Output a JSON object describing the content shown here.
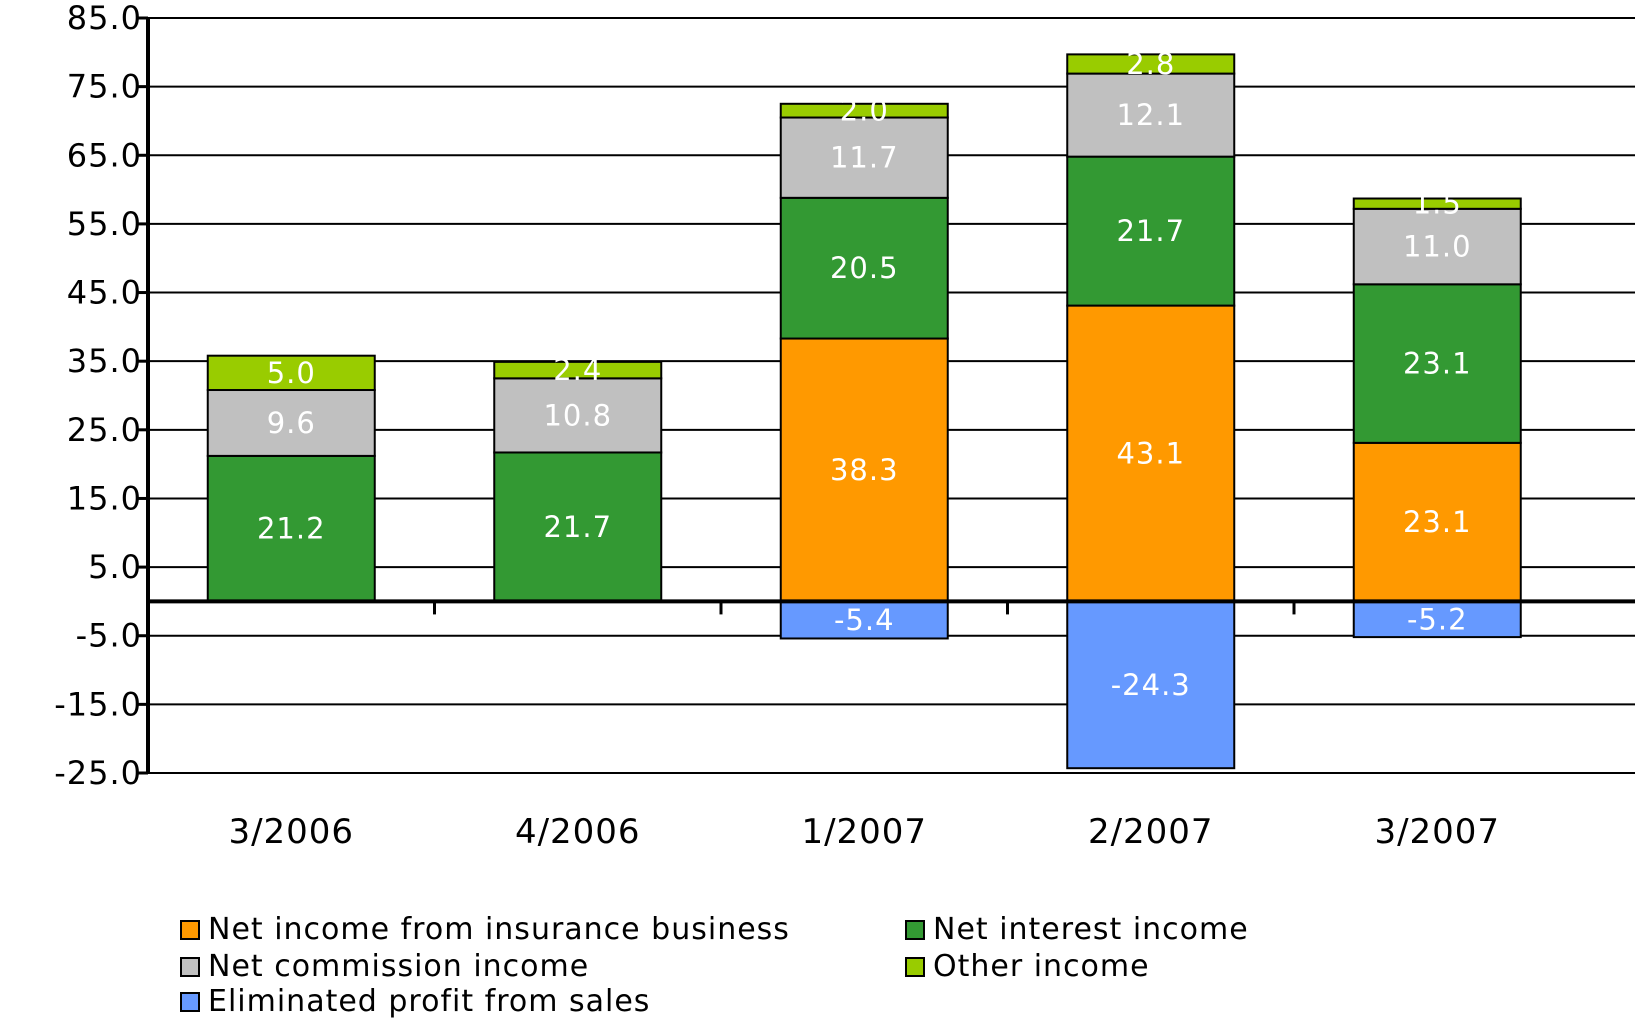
{
  "chart_data": {
    "type": "bar",
    "stacked": true,
    "categories": [
      "3/2006",
      "4/2006",
      "1/2007",
      "2/2007",
      "3/2007"
    ],
    "ylim": [
      -25,
      85
    ],
    "yticks": [
      "85.0",
      "75.0",
      "65.0",
      "55.0",
      "45.0",
      "35.0",
      "25.0",
      "15.0",
      "5.0",
      "-5.0",
      "-15.0",
      "-25.0"
    ],
    "ytick_values": [
      85,
      75,
      65,
      55,
      45,
      35,
      25,
      15,
      5,
      -5,
      -15,
      -25
    ],
    "grid": true,
    "legend_position": "bottom",
    "series": [
      {
        "name": "Net income from insurance business",
        "color": "#FF9900",
        "values": [
          null,
          null,
          38.3,
          43.1,
          23.1
        ],
        "labels": [
          "",
          "",
          "38.3",
          "43.1",
          "23.1"
        ]
      },
      {
        "name": "Net interest income",
        "color": "#339933",
        "values": [
          21.2,
          21.7,
          20.5,
          21.7,
          23.1
        ],
        "labels": [
          "21.2",
          "21.7",
          "20.5",
          "21.7",
          "23.1"
        ]
      },
      {
        "name": "Net commission income",
        "color": "#C0C0C0",
        "values": [
          9.6,
          10.8,
          11.7,
          12.1,
          11.0
        ],
        "labels": [
          "9.6",
          "10.8",
          "11.7",
          "12.1",
          "11.0"
        ]
      },
      {
        "name": "Other income",
        "color": "#99CC00",
        "values": [
          5.0,
          2.4,
          2.0,
          2.8,
          1.5
        ],
        "labels": [
          "5.0",
          "2.4",
          "2.0",
          "2.8",
          "1.5"
        ]
      },
      {
        "name": "Eliminated profit from sales",
        "color": "#6699FF",
        "values": [
          null,
          null,
          -5.4,
          -24.3,
          -5.2
        ],
        "labels": [
          "",
          "",
          "-5.4",
          "-24.3",
          "-5.2"
        ]
      }
    ]
  }
}
